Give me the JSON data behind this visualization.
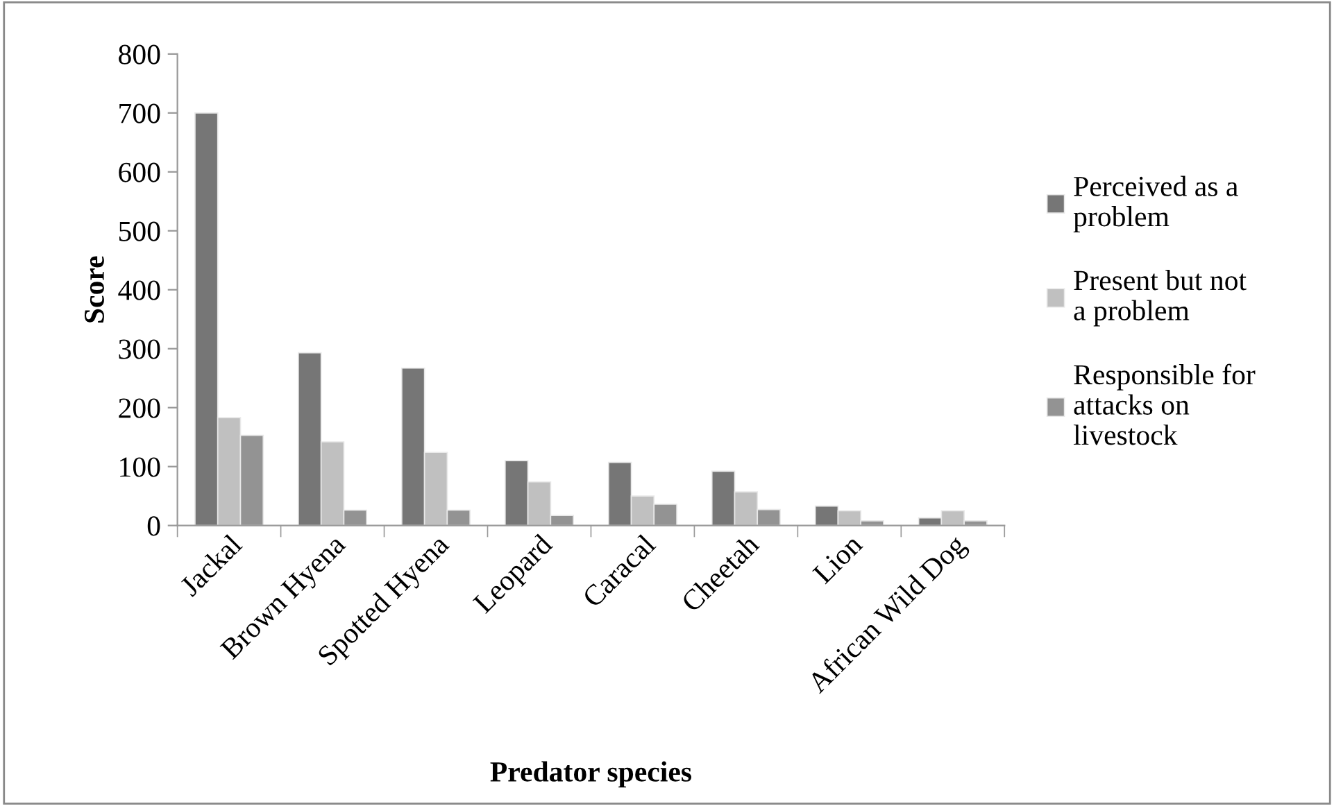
{
  "chart_data": {
    "type": "bar",
    "xlabel": "Predator species",
    "ylabel": "Score",
    "categories": [
      "Jackal",
      "Brown Hyena",
      "Spotted Hyena",
      "Leopard",
      "Caracal",
      "Cheetah",
      "Lion",
      "African Wild Dog"
    ],
    "series": [
      {
        "name": "Perceived as a problem",
        "color": "#767676",
        "values": [
          700,
          293,
          267,
          110,
          107,
          92,
          33,
          13
        ]
      },
      {
        "name": "Present but not a problem",
        "color": "#c0c0c0",
        "values": [
          183,
          142,
          124,
          74,
          50,
          57,
          25,
          25
        ]
      },
      {
        "name": "Responsible for attacks on livestock",
        "color": "#939393",
        "values": [
          153,
          26,
          26,
          17,
          36,
          27,
          8,
          8
        ]
      }
    ],
    "ylim": [
      0,
      800
    ],
    "yticks": [
      0,
      100,
      200,
      300,
      400,
      500,
      600,
      700,
      800
    ],
    "grid": false,
    "legend": "right"
  }
}
